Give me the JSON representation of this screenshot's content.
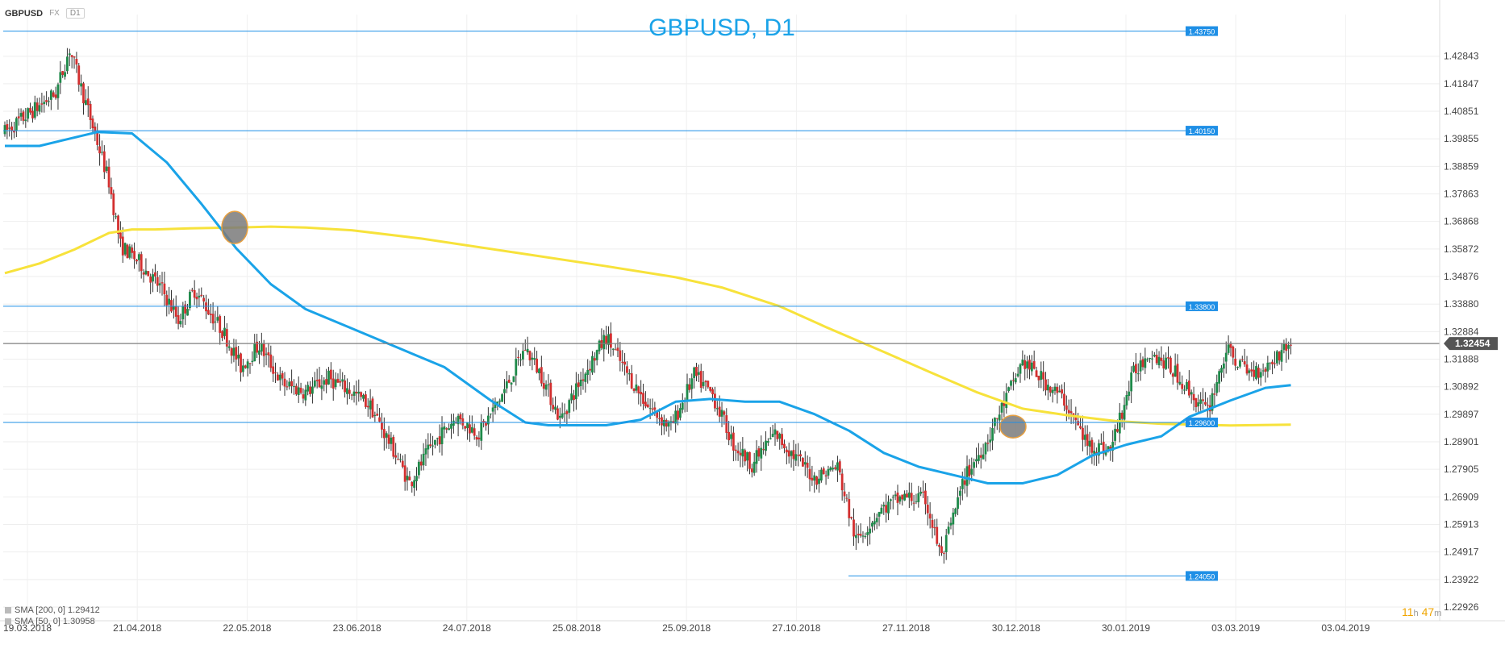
{
  "symbol_bar": {
    "symbol": "GBPUSD",
    "market": "FX",
    "timeframe": "D1"
  },
  "legend": {
    "items": [
      {
        "label": "SMA [200, 0] 1.29412",
        "color": "#f7e23b"
      },
      {
        "label": "SMA [50, 0] 1.30958",
        "color": "#1aa3e8"
      }
    ]
  },
  "countdown": {
    "hours": "11",
    "hours_unit": "h",
    "minutes": "47",
    "minutes_unit": "m"
  },
  "colors": {
    "up": "#1e8a4a",
    "down": "#d32f2f",
    "sma50": "#1aa3e8",
    "sma200": "#f7e23b",
    "level": "#1e8fe6",
    "current": "#7f7f7f"
  },
  "chart_data": {
    "type": "candlestick",
    "title": "GBPUSD, D1",
    "ylim": [
      1.2243,
      1.4435
    ],
    "yticks": [
      "1.42843",
      "1.41847",
      "1.40851",
      "1.39855",
      "1.38859",
      "1.37863",
      "1.36868",
      "1.35872",
      "1.34876",
      "1.33880",
      "1.32884",
      "1.31888",
      "1.30892",
      "1.29897",
      "1.28901",
      "1.27905",
      "1.26909",
      "1.25913",
      "1.24917",
      "1.23922",
      "1.22926"
    ],
    "xticks": [
      "19.03.2018",
      "21.04.2018",
      "22.05.2018",
      "23.06.2018",
      "24.07.2018",
      "25.08.2018",
      "25.09.2018",
      "27.10.2018",
      "27.11.2018",
      "30.12.2018",
      "30.01.2019",
      "03.03.2019",
      "03.04.2019"
    ],
    "levels": [
      "1.43750",
      "1.40150",
      "1.33800",
      "1.29600",
      "1.24050"
    ],
    "current_price": "1.32454",
    "series_labels": [
      "SMA [200, 0] 1.29412",
      "SMA [50, 0] 1.30958"
    ],
    "price_path": [
      [
        0,
        1.401
      ],
      [
        22,
        1.415
      ],
      [
        28,
        1.431
      ],
      [
        38,
        1.403
      ],
      [
        45,
        1.383
      ],
      [
        50,
        1.36
      ],
      [
        58,
        1.354
      ],
      [
        68,
        1.344
      ],
      [
        75,
        1.333
      ],
      [
        82,
        1.344
      ],
      [
        95,
        1.328
      ],
      [
        102,
        1.316
      ],
      [
        110,
        1.324
      ],
      [
        120,
        1.31
      ],
      [
        130,
        1.307
      ],
      [
        140,
        1.312
      ],
      [
        150,
        1.307
      ],
      [
        158,
        1.302
      ],
      [
        168,
        1.286
      ],
      [
        175,
        1.274
      ],
      [
        185,
        1.288
      ],
      [
        195,
        1.298
      ],
      [
        205,
        1.292
      ],
      [
        215,
        1.306
      ],
      [
        225,
        1.323
      ],
      [
        232,
        1.313
      ],
      [
        240,
        1.297
      ],
      [
        250,
        1.313
      ],
      [
        260,
        1.327
      ],
      [
        268,
        1.315
      ],
      [
        278,
        1.302
      ],
      [
        288,
        1.294
      ],
      [
        298,
        1.313
      ],
      [
        306,
        1.306
      ],
      [
        315,
        1.288
      ],
      [
        323,
        1.281
      ],
      [
        333,
        1.292
      ],
      [
        340,
        1.285
      ],
      [
        350,
        1.276
      ],
      [
        360,
        1.28
      ],
      [
        368,
        1.253
      ],
      [
        378,
        1.264
      ],
      [
        388,
        1.269
      ],
      [
        398,
        1.268
      ],
      [
        405,
        1.247
      ],
      [
        415,
        1.276
      ],
      [
        425,
        1.29
      ],
      [
        433,
        1.305
      ],
      [
        440,
        1.318
      ],
      [
        448,
        1.312
      ],
      [
        458,
        1.304
      ],
      [
        468,
        1.288
      ],
      [
        478,
        1.286
      ],
      [
        488,
        1.314
      ],
      [
        495,
        1.322
      ],
      [
        505,
        1.315
      ],
      [
        515,
        1.304
      ],
      [
        520,
        1.3
      ],
      [
        528,
        1.322
      ],
      [
        538,
        1.314
      ],
      [
        545,
        1.316
      ],
      [
        556,
        1.325
      ]
    ],
    "sma200_path": [
      [
        0,
        1.35
      ],
      [
        15,
        1.3535
      ],
      [
        30,
        1.3585
      ],
      [
        45,
        1.3645
      ],
      [
        55,
        1.3658
      ],
      [
        65,
        1.3658
      ],
      [
        80,
        1.3662
      ],
      [
        100,
        1.3665
      ],
      [
        115,
        1.3668
      ],
      [
        130,
        1.3665
      ],
      [
        150,
        1.3655
      ],
      [
        180,
        1.3625
      ],
      [
        220,
        1.3575
      ],
      [
        260,
        1.3525
      ],
      [
        290,
        1.3485
      ],
      [
        310,
        1.3448
      ],
      [
        335,
        1.338
      ],
      [
        355,
        1.3305
      ],
      [
        380,
        1.3215
      ],
      [
        400,
        1.3142
      ],
      [
        420,
        1.307
      ],
      [
        440,
        1.301
      ],
      [
        460,
        1.2985
      ],
      [
        480,
        1.2965
      ],
      [
        500,
        1.2955
      ],
      [
        530,
        1.2949
      ],
      [
        556,
        1.2952
      ]
    ],
    "sma50_path": [
      [
        0,
        1.396
      ],
      [
        15,
        1.396
      ],
      [
        25,
        1.398
      ],
      [
        40,
        1.401
      ],
      [
        55,
        1.4005
      ],
      [
        70,
        1.39
      ],
      [
        85,
        1.375
      ],
      [
        100,
        1.359
      ],
      [
        115,
        1.346
      ],
      [
        130,
        1.337
      ],
      [
        150,
        1.33
      ],
      [
        170,
        1.323
      ],
      [
        190,
        1.316
      ],
      [
        210,
        1.304
      ],
      [
        225,
        1.296
      ],
      [
        235,
        1.295
      ],
      [
        260,
        1.295
      ],
      [
        275,
        1.297
      ],
      [
        290,
        1.3035
      ],
      [
        305,
        1.3045
      ],
      [
        320,
        1.3035
      ],
      [
        335,
        1.3035
      ],
      [
        350,
        1.299
      ],
      [
        365,
        1.293
      ],
      [
        380,
        1.285
      ],
      [
        395,
        1.28
      ],
      [
        410,
        1.277
      ],
      [
        425,
        1.274
      ],
      [
        440,
        1.274
      ],
      [
        455,
        1.277
      ],
      [
        470,
        1.284
      ],
      [
        485,
        1.288
      ],
      [
        500,
        1.291
      ],
      [
        512,
        1.298
      ],
      [
        530,
        1.304
      ],
      [
        545,
        1.3085
      ],
      [
        556,
        1.3095
      ]
    ],
    "markers": [
      [
        1.3665
      ],
      [
        1.2942
      ]
    ]
  }
}
